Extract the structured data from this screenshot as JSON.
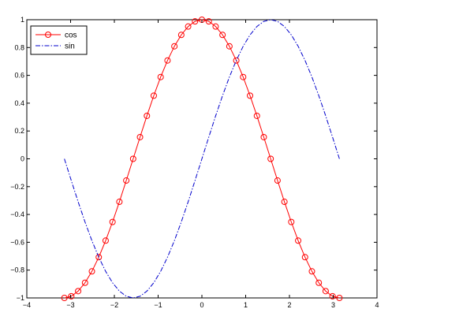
{
  "chart_data": {
    "type": "line",
    "title": "",
    "xlabel": "",
    "ylabel": "",
    "xlim": [
      -4,
      4
    ],
    "ylim": [
      -1,
      1
    ],
    "xticks": [
      -4,
      -3,
      -2,
      -1,
      0,
      1,
      2,
      3,
      4
    ],
    "yticks": [
      -1,
      -0.8,
      -0.6,
      -0.4,
      -0.2,
      0,
      0.2,
      0.4,
      0.6,
      0.8,
      1
    ],
    "grid": false,
    "legend_position": "top-left",
    "series": [
      {
        "name": "cos",
        "color": "#ff0000",
        "line_style": "solid",
        "marker": "circle",
        "x": [
          -3.1416,
          -2.9845,
          -2.8274,
          -2.6704,
          -2.5133,
          -2.3562,
          -2.1991,
          -2.042,
          -1.885,
          -1.7279,
          -1.5708,
          -1.4137,
          -1.2566,
          -1.0996,
          -0.9425,
          -0.7854,
          -0.6283,
          -0.4712,
          -0.3142,
          -0.1571,
          0,
          0.1571,
          0.3142,
          0.4712,
          0.6283,
          0.7854,
          0.9425,
          1.0996,
          1.2566,
          1.4137,
          1.5708,
          1.7279,
          1.885,
          2.042,
          2.1991,
          2.3562,
          2.5133,
          2.6704,
          2.8274,
          2.9845,
          3.1416
        ],
        "y": [
          -1,
          -0.988,
          -0.951,
          -0.891,
          -0.809,
          -0.707,
          -0.588,
          -0.454,
          -0.309,
          -0.156,
          0,
          0.156,
          0.309,
          0.454,
          0.588,
          0.707,
          0.809,
          0.891,
          0.951,
          0.988,
          1,
          0.988,
          0.951,
          0.891,
          0.809,
          0.707,
          0.588,
          0.454,
          0.309,
          0.156,
          0,
          -0.156,
          -0.309,
          -0.454,
          -0.588,
          -0.707,
          -0.809,
          -0.891,
          -0.951,
          -0.988,
          -1
        ]
      },
      {
        "name": "sin",
        "color": "#0000cc",
        "line_style": "dashdot",
        "marker": "none",
        "x": [
          -3.1416,
          -2.9845,
          -2.8274,
          -2.6704,
          -2.5133,
          -2.3562,
          -2.1991,
          -2.042,
          -1.885,
          -1.7279,
          -1.5708,
          -1.4137,
          -1.2566,
          -1.0996,
          -0.9425,
          -0.7854,
          -0.6283,
          -0.4712,
          -0.3142,
          -0.1571,
          0,
          0.1571,
          0.3142,
          0.4712,
          0.6283,
          0.7854,
          0.9425,
          1.0996,
          1.2566,
          1.4137,
          1.5708,
          1.7279,
          1.885,
          2.042,
          2.1991,
          2.3562,
          2.5133,
          2.6704,
          2.8274,
          2.9845,
          3.1416
        ],
        "y": [
          0,
          -0.156,
          -0.309,
          -0.454,
          -0.588,
          -0.707,
          -0.809,
          -0.891,
          -0.951,
          -0.988,
          -1,
          -0.988,
          -0.951,
          -0.891,
          -0.809,
          -0.707,
          -0.588,
          -0.454,
          -0.309,
          -0.156,
          0,
          0.156,
          0.309,
          0.454,
          0.588,
          0.707,
          0.809,
          0.891,
          0.951,
          0.988,
          1,
          0.988,
          0.951,
          0.891,
          0.809,
          0.707,
          0.588,
          0.454,
          0.309,
          0.156,
          0
        ]
      }
    ]
  }
}
